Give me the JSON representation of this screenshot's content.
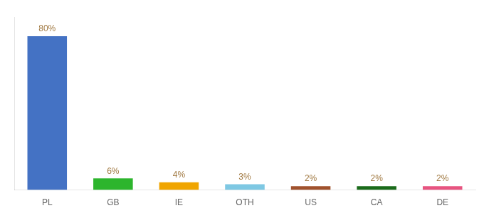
{
  "chart_data": {
    "type": "bar",
    "categories": [
      "PL",
      "GB",
      "IE",
      "OTH",
      "US",
      "CA",
      "DE"
    ],
    "values": [
      80,
      6,
      4,
      3,
      2,
      2,
      2
    ],
    "value_labels": [
      "80%",
      "6%",
      "4%",
      "3%",
      "2%",
      "2%",
      "2%"
    ],
    "colors": [
      "#4472c4",
      "#2db52d",
      "#f0a500",
      "#7ec8e3",
      "#a0522d",
      "#1a6b1a",
      "#e75480"
    ],
    "ylim": [
      0,
      90
    ],
    "data_labels": true,
    "tick_labels": "x",
    "grid": false
  }
}
